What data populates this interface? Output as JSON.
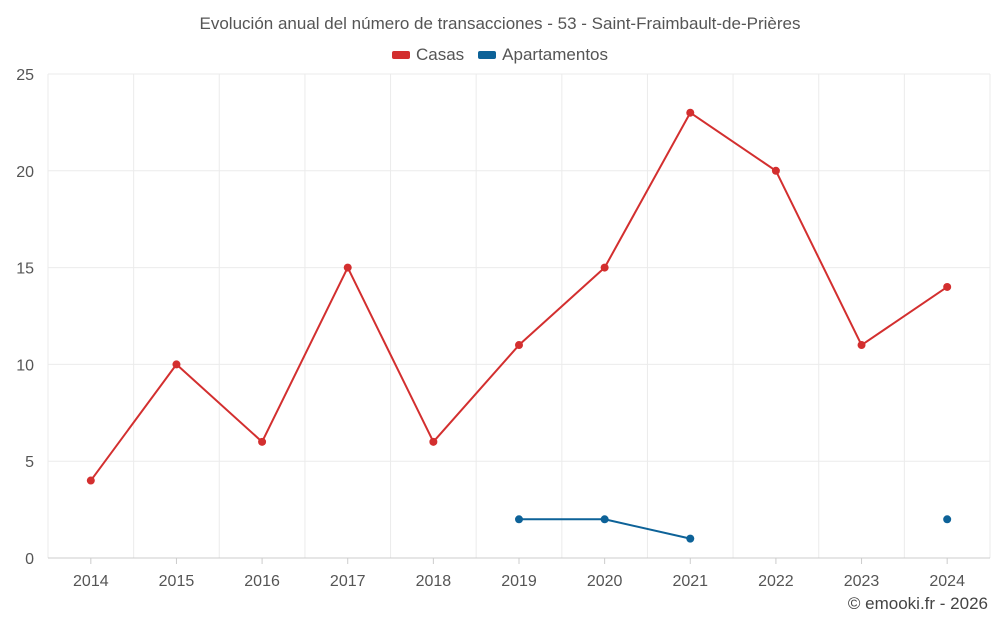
{
  "chart_data": {
    "type": "line",
    "title": "Evolución anual del número de transacciones - 53 - Saint-Fraimbault-de-Prières",
    "categories": [
      "2014",
      "2015",
      "2016",
      "2017",
      "2018",
      "2019",
      "2020",
      "2021",
      "2022",
      "2023",
      "2024"
    ],
    "series": [
      {
        "name": "Casas",
        "color": "#d32f2f",
        "values": [
          4,
          10,
          6,
          15,
          6,
          11,
          15,
          23,
          20,
          11,
          14
        ]
      },
      {
        "name": "Apartamentos",
        "color": "#0d6298",
        "values": [
          null,
          null,
          null,
          null,
          null,
          2,
          2,
          1,
          null,
          null,
          2
        ]
      }
    ],
    "ylim": [
      0,
      25
    ],
    "yticks": [
      0,
      5,
      10,
      15,
      20,
      25
    ],
    "xlabel": "",
    "ylabel": "",
    "grid": true,
    "legend_position": "top-center"
  },
  "credit": "© emooki.fr - 2026"
}
